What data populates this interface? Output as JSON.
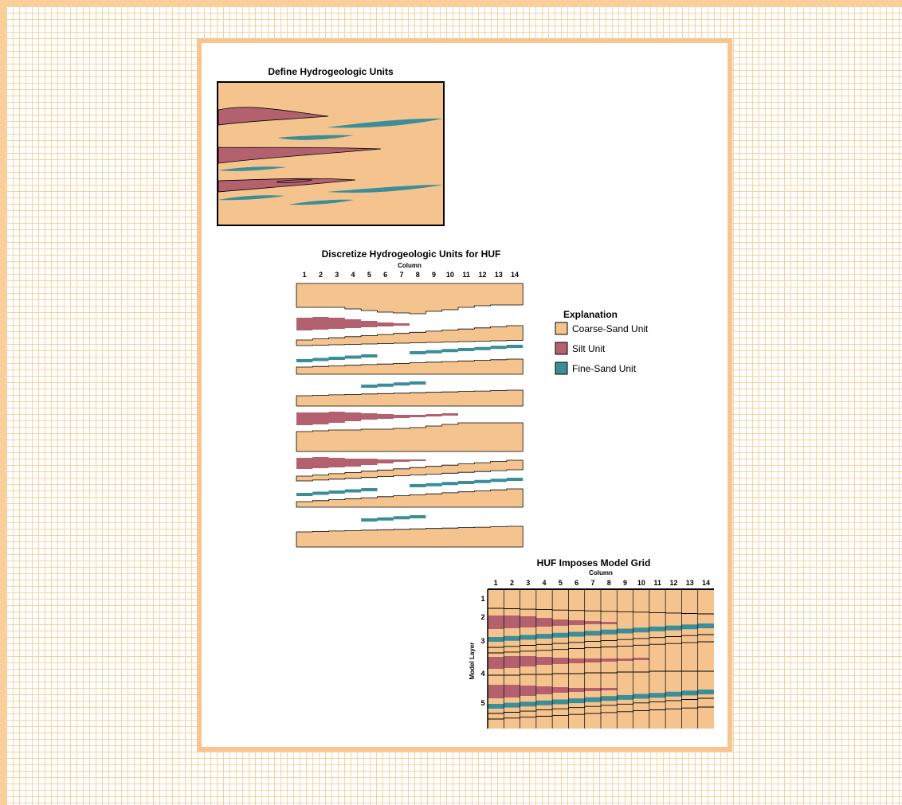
{
  "colors": {
    "coarse_sand": "#f5c48e",
    "silt": "#b4616f",
    "fine_sand": "#3b8e98",
    "outline": "#000000"
  },
  "diagram": {
    "panel1_title": "Define Hydrogeologic Units",
    "panel2_title": "Discretize Hydrogeologic Units for HUF",
    "panel3_title": "HUF Imposes Model Grid",
    "column_label": "Column",
    "model_layer_label": "Model Layer",
    "columns": [
      "1",
      "2",
      "3",
      "4",
      "5",
      "6",
      "7",
      "8",
      "9",
      "10",
      "11",
      "12",
      "13",
      "14"
    ],
    "layers": [
      "1",
      "2",
      "3",
      "4",
      "5"
    ]
  },
  "legend": {
    "title": "Explanation",
    "items": [
      {
        "label": "Coarse-Sand Unit",
        "color": "#f5c48e"
      },
      {
        "label": "Silt Unit",
        "color": "#b4616f"
      },
      {
        "label": "Fine-Sand Unit",
        "color": "#3b8e98"
      }
    ]
  }
}
